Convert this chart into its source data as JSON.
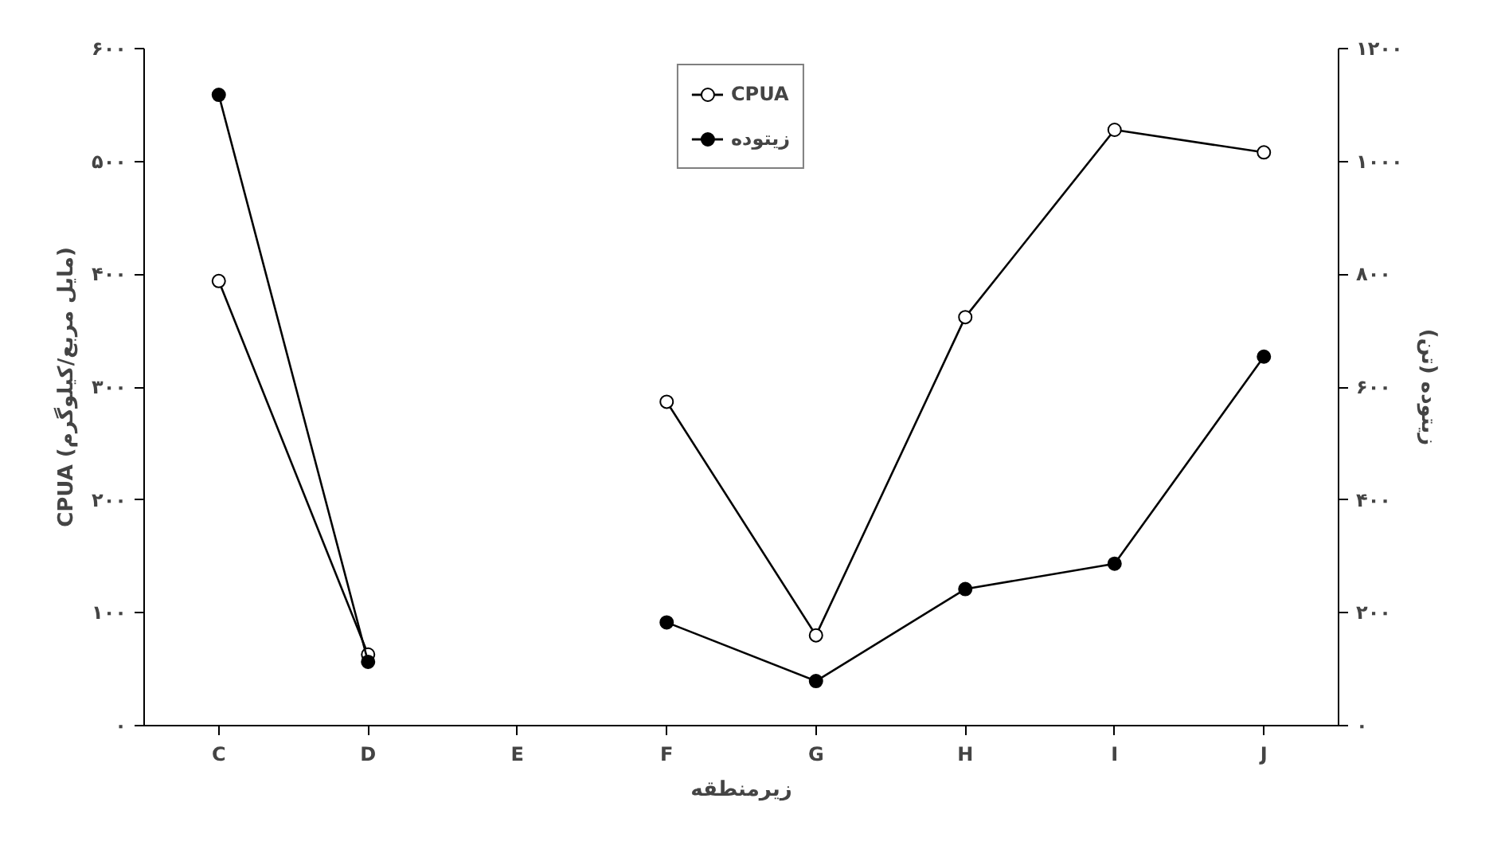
{
  "chart_data": {
    "type": "line",
    "xlabel": "زیرمنطقه",
    "ylabel": "CPUA (مایل مربع/کیلوگرم)",
    "y2label": "زیتوده (تن)",
    "categories": [
      "C",
      "D",
      "E",
      "F",
      "G",
      "H",
      "I",
      "J"
    ],
    "series": [
      {
        "name": "CPUA",
        "color": "#000000",
        "values": [
          394,
          63,
          null,
          287,
          80,
          362,
          528,
          508
        ]
      },
      {
        "name": "زیتوده",
        "color": "#000000",
        "axis": "y2",
        "values": [
          1118,
          113,
          null,
          183,
          79,
          242,
          287,
          654
        ]
      }
    ],
    "ylim": [
      0,
      600
    ],
    "yticks": [
      {
        "value": 0,
        "label": "۰"
      },
      {
        "value": 100,
        "label": "۱۰۰"
      },
      {
        "value": 200,
        "label": "۲۰۰"
      },
      {
        "value": 300,
        "label": "۳۰۰"
      },
      {
        "value": 400,
        "label": "۴۰۰"
      },
      {
        "value": 500,
        "label": "۵۰۰"
      },
      {
        "value": 600,
        "label": "۶۰۰"
      }
    ],
    "y2lim": [
      0,
      1200
    ],
    "y2ticks": [
      {
        "value": 0,
        "label": "۰"
      },
      {
        "value": 200,
        "label": "۲۰۰"
      },
      {
        "value": 400,
        "label": "۴۰۰"
      },
      {
        "value": 600,
        "label": "۶۰۰"
      },
      {
        "value": 800,
        "label": "۸۰۰"
      },
      {
        "value": 1000,
        "label": "۱۰۰۰"
      },
      {
        "value": 1200,
        "label": "۱۲۰۰"
      }
    ],
    "grid": false,
    "legend": "top",
    "marker": "circle"
  }
}
